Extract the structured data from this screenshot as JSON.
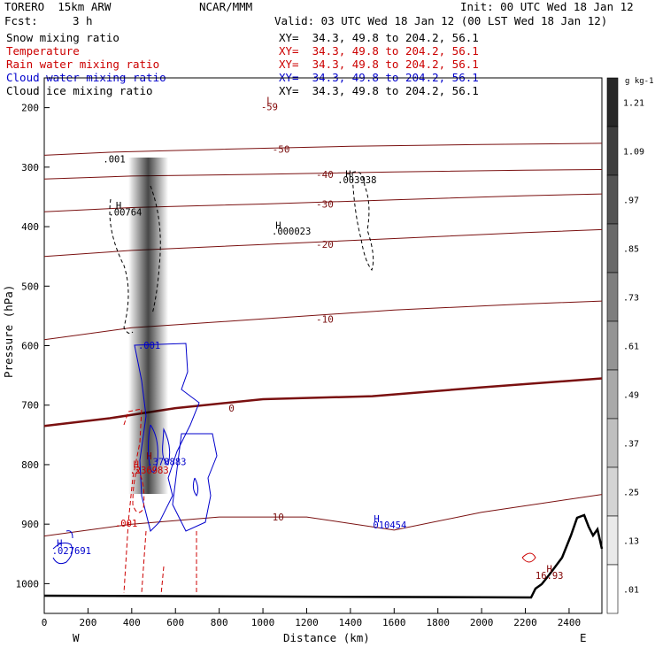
{
  "header": {
    "model": "TORERO  15km ARW",
    "source": "NCAR/MMM",
    "init": "Init: 00 UTC Wed 18 Jan 12",
    "fcst_label": "Fcst:",
    "fcst_value": "3 h",
    "valid": "Valid: 03 UTC Wed 18 Jan 12 (00 LST Wed 18 Jan 12)"
  },
  "fields": [
    {
      "name": "Snow mixing ratio",
      "xy": "XY=  34.3, 49.8 to 204.2, 56.1",
      "color": "#000000"
    },
    {
      "name": "Temperature",
      "xy": "XY=  34.3, 49.8 to 204.2, 56.1",
      "color": "#cc0000"
    },
    {
      "name": "Rain water mixing ratio",
      "xy": "XY=  34.3, 49.8 to 204.2, 56.1",
      "color": "#cc0000"
    },
    {
      "name": "Cloud water mixing ratio",
      "xy": "XY=  34.3, 49.8 to 204.2, 56.1",
      "color": "#0000cc"
    },
    {
      "name": "Cloud ice mixing ratio",
      "xy": "XY=  34.3, 49.8 to 204.2, 56.1",
      "color": "#000000"
    }
  ],
  "colorbar": {
    "unit": "g kg-1",
    "ticks": [
      "1.21",
      "1.09",
      ".97",
      ".85",
      ".73",
      ".61",
      ".49",
      ".37",
      ".25",
      ".13",
      ".01"
    ]
  },
  "chart_data": {
    "type": "cross-section",
    "xlabel": "Distance (km)",
    "ylabel": "Pressure (hPa)",
    "xlim": [
      0,
      2550
    ],
    "ylim": [
      1050,
      150
    ],
    "x_ticks": [
      "0",
      "200",
      "400",
      "600",
      "800",
      "1000",
      "1200",
      "1400",
      "1600",
      "1800",
      "2000",
      "2200",
      "2400"
    ],
    "y_ticks": [
      "200",
      "300",
      "400",
      "500",
      "600",
      "700",
      "800",
      "900",
      "1000"
    ],
    "left_end_label": "W",
    "right_end_label": "E",
    "temperature_contours": [
      {
        "label": "-50",
        "pts": [
          [
            0,
            280
          ],
          [
            300,
            275
          ],
          [
            800,
            270
          ],
          [
            1400,
            265
          ],
          [
            2000,
            262
          ],
          [
            2550,
            260
          ]
        ]
      },
      {
        "label": "-40",
        "pts": [
          [
            0,
            320
          ],
          [
            400,
            315
          ],
          [
            1000,
            312
          ],
          [
            1600,
            308
          ],
          [
            2200,
            305
          ],
          [
            2550,
            304
          ]
        ]
      },
      {
        "label": "-30",
        "pts": [
          [
            0,
            375
          ],
          [
            400,
            368
          ],
          [
            1000,
            362
          ],
          [
            1600,
            355
          ],
          [
            2200,
            348
          ],
          [
            2550,
            345
          ]
        ]
      },
      {
        "label": "-20",
        "pts": [
          [
            0,
            450
          ],
          [
            400,
            440
          ],
          [
            1000,
            430
          ],
          [
            1600,
            420
          ],
          [
            2200,
            410
          ],
          [
            2550,
            405
          ]
        ]
      },
      {
        "label": "-10",
        "pts": [
          [
            0,
            590
          ],
          [
            400,
            570
          ],
          [
            1000,
            555
          ],
          [
            1600,
            540
          ],
          [
            2200,
            530
          ],
          [
            2550,
            525
          ]
        ]
      },
      {
        "label": "0",
        "pts": [
          [
            0,
            735
          ],
          [
            300,
            722
          ],
          [
            600,
            705
          ],
          [
            1000,
            690
          ],
          [
            1500,
            685
          ],
          [
            2000,
            670
          ],
          [
            2550,
            655
          ]
        ]
      },
      {
        "label": "10",
        "pts": [
          [
            0,
            920
          ],
          [
            400,
            900
          ],
          [
            800,
            888
          ],
          [
            1200,
            888
          ],
          [
            1600,
            910
          ],
          [
            2000,
            880
          ],
          [
            2550,
            850
          ]
        ]
      }
    ],
    "annotations": [
      {
        "text": "L",
        "x": 1030,
        "p": 194,
        "color": "#800000"
      },
      {
        "text": "-59",
        "x": 1030,
        "p": 204,
        "color": "#800000"
      },
      {
        "text": ".001",
        "x": 320,
        "p": 292,
        "color": "#000000"
      },
      {
        "text": "H",
        "x": 340,
        "p": 370,
        "color": "#000000"
      },
      {
        "text": ".00764",
        "x": 370,
        "p": 381,
        "color": "#000000"
      },
      {
        "text": "H",
        "x": 1070,
        "p": 404,
        "color": "#000000"
      },
      {
        "text": ".000023",
        "x": 1130,
        "p": 413,
        "color": "#000000"
      },
      {
        "text": "H",
        "x": 1390,
        "p": 317,
        "color": "#000000"
      },
      {
        "text": ".003938",
        "x": 1430,
        "p": 327,
        "color": "#000000"
      },
      {
        "text": ".001",
        "x": 480,
        "p": 605,
        "color": "#0000cc"
      },
      {
        "text": "H",
        "x": 480,
        "p": 791,
        "color": "#800000"
      },
      {
        "text": ".378883",
        "x": 560,
        "p": 801,
        "color": "#0000cc"
      },
      {
        "text": "H",
        "x": 420,
        "p": 805,
        "color": "#cc0000"
      },
      {
        "text": ".236983",
        "x": 480,
        "p": 815,
        "color": "#cc0000"
      },
      {
        "text": ".001",
        "x": 375,
        "p": 904,
        "color": "#cc0000"
      },
      {
        "text": "H",
        "x": 70,
        "p": 938,
        "color": "#0000cc"
      },
      {
        "text": ".027691",
        "x": 125,
        "p": 950,
        "color": "#0000cc"
      },
      {
        "text": "H",
        "x": 1520,
        "p": 897,
        "color": "#0000cc"
      },
      {
        "text": "010454",
        "x": 1580,
        "p": 907,
        "color": "#0000cc"
      },
      {
        "text": "H",
        "x": 2310,
        "p": 981,
        "color": "#800000"
      },
      {
        "text": "16.93",
        "x": 2310,
        "p": 992,
        "color": "#800000"
      }
    ]
  }
}
